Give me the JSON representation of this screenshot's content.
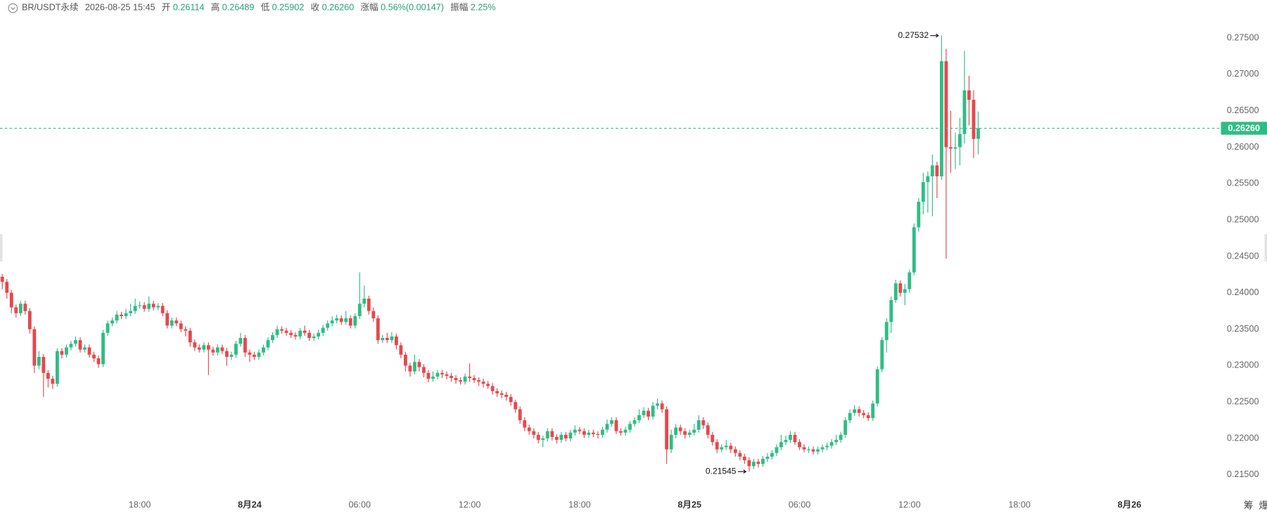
{
  "header": {
    "symbol": "BR/USDT永续",
    "time": "2026-08-25 15:45",
    "fields": [
      {
        "label": "开",
        "value": "0.26114"
      },
      {
        "label": "高",
        "value": "0.26489"
      },
      {
        "label": "低",
        "value": "0.25902"
      },
      {
        "label": "收",
        "value": "0.26260"
      },
      {
        "label": "涨幅",
        "value": "0.56%(0.00147)"
      },
      {
        "label": "振幅",
        "value": "2.25%"
      }
    ]
  },
  "toolbar": [
    "筹",
    "爆"
  ],
  "chart_data": {
    "type": "candlestick",
    "up_color": "#2ebd85",
    "down_color": "#e5484d",
    "xlim": [
      -0.5,
      265.8
    ],
    "xticks": [
      {
        "value": 30,
        "label": "18:00"
      },
      {
        "value": 54,
        "label": "8月24"
      },
      {
        "value": 78,
        "label": "06:00"
      },
      {
        "value": 102,
        "label": "12:00"
      },
      {
        "value": 126,
        "label": "18:00"
      },
      {
        "value": 150,
        "label": "8月25"
      },
      {
        "value": 174,
        "label": "06:00"
      },
      {
        "value": 198,
        "label": "12:00"
      },
      {
        "value": 222,
        "label": "18:00"
      },
      {
        "value": 246,
        "label": "8月26"
      }
    ],
    "ylim": [
      0.2126,
      0.2802
    ],
    "yticks": [
      {
        "value": 0.215,
        "label": "0.21500"
      },
      {
        "value": 0.22,
        "label": "0.22000"
      },
      {
        "value": 0.225,
        "label": "0.22500"
      },
      {
        "value": 0.23,
        "label": "0.23000"
      },
      {
        "value": 0.235,
        "label": "0.23500"
      },
      {
        "value": 0.24,
        "label": "0.24000"
      },
      {
        "value": 0.245,
        "label": "0.24500"
      },
      {
        "value": 0.25,
        "label": "0.25000"
      },
      {
        "value": 0.255,
        "label": "0.25500"
      },
      {
        "value": 0.26,
        "label": "0.26000"
      },
      {
        "value": 0.265,
        "label": "0.26500"
      },
      {
        "value": 0.27,
        "label": "0.27000"
      },
      {
        "value": 0.275,
        "label": "0.27500"
      }
    ],
    "last_price": {
      "value": 0.2626,
      "label": "0.26260"
    },
    "annotations": {
      "high": 0.27532,
      "low": 0.21545
    },
    "open": [
      0.2422,
      0.2415,
      0.24,
      0.238,
      0.2372,
      0.2385,
      0.2375,
      0.235,
      0.23,
      0.2312,
      0.229,
      0.2282,
      0.2275,
      0.232,
      0.2315,
      0.2325,
      0.233,
      0.2335,
      0.2322,
      0.2325,
      0.2315,
      0.231,
      0.2302,
      0.2345,
      0.2358,
      0.2362,
      0.237,
      0.2368,
      0.2372,
      0.2375,
      0.2382,
      0.2383,
      0.2378,
      0.2385,
      0.238,
      0.2382,
      0.2372,
      0.2355,
      0.2362,
      0.2358,
      0.235,
      0.2348,
      0.2332,
      0.2325,
      0.2322,
      0.2328,
      0.2322,
      0.2318,
      0.2325,
      0.232,
      0.2312,
      0.2315,
      0.233,
      0.2338,
      0.2318,
      0.2315,
      0.2312,
      0.2318,
      0.2325,
      0.2335,
      0.2342,
      0.235,
      0.2348,
      0.2345,
      0.2342,
      0.234,
      0.2348,
      0.2345,
      0.2338,
      0.234,
      0.2345,
      0.2352,
      0.2358,
      0.2362,
      0.2365,
      0.236,
      0.2365,
      0.2355,
      0.2368,
      0.2385,
      0.2392,
      0.2375,
      0.2365,
      0.2335,
      0.2338,
      0.2335,
      0.234,
      0.2328,
      0.2315,
      0.23,
      0.2292,
      0.2305,
      0.2298,
      0.229,
      0.2282,
      0.2285,
      0.229,
      0.2288,
      0.2286,
      0.2283,
      0.228,
      0.2278,
      0.2285,
      0.2283,
      0.228,
      0.2278,
      0.2275,
      0.2272,
      0.2265,
      0.2262,
      0.226,
      0.2257,
      0.225,
      0.224,
      0.2225,
      0.2215,
      0.221,
      0.2205,
      0.2198,
      0.22,
      0.221,
      0.2202,
      0.2198,
      0.2205,
      0.22,
      0.2208,
      0.2212,
      0.221,
      0.2205,
      0.2208,
      0.2206,
      0.2205,
      0.2212,
      0.222,
      0.2225,
      0.221,
      0.2208,
      0.2212,
      0.222,
      0.2225,
      0.2232,
      0.2238,
      0.223,
      0.2245,
      0.2248,
      0.224,
      0.2185,
      0.2205,
      0.2215,
      0.221,
      0.2205,
      0.2208,
      0.2212,
      0.2225,
      0.2218,
      0.2205,
      0.2195,
      0.2185,
      0.2188,
      0.219,
      0.2185,
      0.218,
      0.2175,
      0.217,
      0.2162,
      0.2168,
      0.2165,
      0.2172,
      0.2175,
      0.218,
      0.2188,
      0.2195,
      0.2198,
      0.2205,
      0.2195,
      0.2188,
      0.2185,
      0.2185,
      0.2182,
      0.2185,
      0.2188,
      0.219,
      0.2195,
      0.2198,
      0.2205,
      0.2225,
      0.2235,
      0.224,
      0.2235,
      0.2232,
      0.2228,
      0.2248,
      0.2295,
      0.2335,
      0.236,
      0.239,
      0.2413,
      0.24,
      0.2405,
      0.2428,
      0.249,
      0.2525,
      0.2552,
      0.256,
      0.2575,
      0.256,
      0.2718,
      0.26,
      0.2598,
      0.26,
      0.2618,
      0.2678,
      0.2665,
      0.26114
    ],
    "high": [
      0.2426,
      0.2419,
      0.2404,
      0.2384,
      0.2389,
      0.2389,
      0.2379,
      0.2354,
      0.232,
      0.2316,
      0.2294,
      0.2286,
      0.2324,
      0.2324,
      0.2329,
      0.2334,
      0.234,
      0.2339,
      0.2329,
      0.2329,
      0.2319,
      0.2314,
      0.2349,
      0.2362,
      0.2366,
      0.2375,
      0.2374,
      0.2378,
      0.2385,
      0.2392,
      0.2388,
      0.2387,
      0.2395,
      0.2389,
      0.2386,
      0.2386,
      0.2376,
      0.2366,
      0.2366,
      0.2362,
      0.2354,
      0.2352,
      0.2336,
      0.2329,
      0.2332,
      0.2332,
      0.2326,
      0.2329,
      0.2329,
      0.2324,
      0.2319,
      0.2334,
      0.2345,
      0.2342,
      0.2322,
      0.2319,
      0.2322,
      0.2329,
      0.2339,
      0.2346,
      0.2355,
      0.2354,
      0.2352,
      0.2349,
      0.2346,
      0.2352,
      0.2355,
      0.2349,
      0.2344,
      0.2349,
      0.2356,
      0.2362,
      0.2368,
      0.237,
      0.2369,
      0.2375,
      0.2369,
      0.2372,
      0.2428,
      0.241,
      0.2396,
      0.238,
      0.2369,
      0.2342,
      0.2345,
      0.2346,
      0.2344,
      0.2332,
      0.2319,
      0.2304,
      0.2315,
      0.2309,
      0.2302,
      0.2294,
      0.2292,
      0.2294,
      0.2294,
      0.2292,
      0.229,
      0.2287,
      0.2284,
      0.2289,
      0.2303,
      0.2287,
      0.2284,
      0.2282,
      0.2279,
      0.2276,
      0.2269,
      0.2266,
      0.2264,
      0.2261,
      0.2253,
      0.2244,
      0.2229,
      0.2219,
      0.2214,
      0.2209,
      0.2204,
      0.2214,
      0.2214,
      0.2206,
      0.2209,
      0.2209,
      0.2212,
      0.2218,
      0.2216,
      0.2214,
      0.2212,
      0.2212,
      0.221,
      0.2216,
      0.2226,
      0.2229,
      0.2229,
      0.2214,
      0.2216,
      0.2224,
      0.2229,
      0.224,
      0.2243,
      0.2242,
      0.225,
      0.2255,
      0.2252,
      0.2244,
      0.2212,
      0.222,
      0.2219,
      0.2214,
      0.2212,
      0.222,
      0.2232,
      0.2229,
      0.2222,
      0.2209,
      0.2199,
      0.2192,
      0.2198,
      0.2194,
      0.2189,
      0.2184,
      0.2179,
      0.2174,
      0.2172,
      0.2172,
      0.2176,
      0.218,
      0.2184,
      0.2192,
      0.2205,
      0.2204,
      0.221,
      0.2209,
      0.2199,
      0.2192,
      0.2189,
      0.2189,
      0.2189,
      0.2192,
      0.2194,
      0.2199,
      0.2205,
      0.2209,
      0.2229,
      0.224,
      0.2246,
      0.2244,
      0.2239,
      0.2236,
      0.2252,
      0.2299,
      0.2339,
      0.2365,
      0.2395,
      0.2418,
      0.2417,
      0.2412,
      0.2432,
      0.2495,
      0.253,
      0.2565,
      0.2567,
      0.259,
      0.258,
      0.27532,
      0.2735,
      0.265,
      0.262,
      0.264,
      0.2732,
      0.2698,
      0.2678,
      0.26489
    ],
    "low": [
      0.2405,
      0.2392,
      0.2372,
      0.2366,
      0.2368,
      0.237,
      0.2344,
      0.229,
      0.2295,
      0.2257,
      0.227,
      0.2268,
      0.2271,
      0.231,
      0.2311,
      0.2321,
      0.2326,
      0.2318,
      0.2318,
      0.2311,
      0.2305,
      0.2297,
      0.2298,
      0.2341,
      0.2354,
      0.2358,
      0.2364,
      0.2364,
      0.2368,
      0.2371,
      0.2378,
      0.2374,
      0.2374,
      0.2376,
      0.2376,
      0.2368,
      0.2351,
      0.2351,
      0.2354,
      0.2346,
      0.234,
      0.2326,
      0.232,
      0.2318,
      0.2318,
      0.2287,
      0.2314,
      0.2314,
      0.2316,
      0.23,
      0.2308,
      0.2311,
      0.2326,
      0.2312,
      0.2305,
      0.2308,
      0.2308,
      0.2314,
      0.2321,
      0.2331,
      0.2338,
      0.2344,
      0.2341,
      0.2338,
      0.2336,
      0.2336,
      0.2341,
      0.2334,
      0.2334,
      0.2336,
      0.2341,
      0.2348,
      0.2354,
      0.2358,
      0.2356,
      0.2356,
      0.2351,
      0.2351,
      0.2364,
      0.238,
      0.237,
      0.236,
      0.233,
      0.2331,
      0.2331,
      0.2331,
      0.2322,
      0.231,
      0.2292,
      0.2285,
      0.2288,
      0.2292,
      0.2284,
      0.2277,
      0.2278,
      0.2281,
      0.2283,
      0.2281,
      0.2278,
      0.2275,
      0.2274,
      0.2274,
      0.2278,
      0.2276,
      0.2272,
      0.227,
      0.2268,
      0.226,
      0.2257,
      0.2255,
      0.2252,
      0.2245,
      0.2235,
      0.222,
      0.221,
      0.2205,
      0.22,
      0.2193,
      0.2188,
      0.2196,
      0.2197,
      0.2193,
      0.2194,
      0.2196,
      0.2196,
      0.2204,
      0.2206,
      0.2201,
      0.2201,
      0.2202,
      0.22,
      0.2201,
      0.2208,
      0.2216,
      0.2206,
      0.2204,
      0.2204,
      0.2208,
      0.2216,
      0.2221,
      0.2228,
      0.2225,
      0.2226,
      0.224,
      0.2235,
      0.2165,
      0.218,
      0.22,
      0.2205,
      0.22,
      0.2201,
      0.2204,
      0.2208,
      0.2213,
      0.22,
      0.219,
      0.218,
      0.2181,
      0.2184,
      0.218,
      0.2175,
      0.217,
      0.2165,
      0.21545,
      0.2158,
      0.216,
      0.2161,
      0.2168,
      0.2171,
      0.2176,
      0.2184,
      0.2191,
      0.2194,
      0.2191,
      0.2184,
      0.2181,
      0.218,
      0.2178,
      0.2178,
      0.2181,
      0.2184,
      0.2186,
      0.2191,
      0.2194,
      0.2201,
      0.2221,
      0.2231,
      0.223,
      0.2228,
      0.2224,
      0.2224,
      0.2244,
      0.2291,
      0.2318,
      0.2345,
      0.2386,
      0.2395,
      0.2383,
      0.24,
      0.2424,
      0.2484,
      0.2508,
      0.251,
      0.2505,
      0.253,
      0.2555,
      0.2447,
      0.2565,
      0.257,
      0.2575,
      0.2605,
      0.263,
      0.2585,
      0.25902
    ],
    "close": [
      0.2415,
      0.24,
      0.238,
      0.2372,
      0.2385,
      0.2375,
      0.235,
      0.23,
      0.2312,
      0.229,
      0.2282,
      0.2275,
      0.232,
      0.2315,
      0.2325,
      0.233,
      0.2335,
      0.2322,
      0.2325,
      0.2315,
      0.231,
      0.2302,
      0.2345,
      0.2358,
      0.2362,
      0.237,
      0.2368,
      0.2372,
      0.2375,
      0.2382,
      0.2383,
      0.2378,
      0.2385,
      0.238,
      0.2382,
      0.2372,
      0.2355,
      0.2362,
      0.2358,
      0.235,
      0.2348,
      0.2332,
      0.2325,
      0.2322,
      0.2328,
      0.2322,
      0.2318,
      0.2325,
      0.232,
      0.2312,
      0.2315,
      0.233,
      0.2338,
      0.2318,
      0.2315,
      0.2312,
      0.2318,
      0.2325,
      0.2335,
      0.2342,
      0.235,
      0.2348,
      0.2345,
      0.2342,
      0.234,
      0.2348,
      0.2345,
      0.2338,
      0.234,
      0.2345,
      0.2352,
      0.2358,
      0.2362,
      0.2365,
      0.236,
      0.2365,
      0.2355,
      0.2368,
      0.2385,
      0.2392,
      0.2375,
      0.2365,
      0.2335,
      0.2338,
      0.2335,
      0.234,
      0.2328,
      0.2315,
      0.23,
      0.2292,
      0.2305,
      0.2298,
      0.229,
      0.2282,
      0.2285,
      0.229,
      0.2288,
      0.2286,
      0.2283,
      0.228,
      0.2278,
      0.2285,
      0.2283,
      0.228,
      0.2278,
      0.2275,
      0.2272,
      0.2265,
      0.2262,
      0.226,
      0.2257,
      0.225,
      0.224,
      0.2225,
      0.2215,
      0.221,
      0.2205,
      0.2198,
      0.22,
      0.221,
      0.2202,
      0.2198,
      0.2205,
      0.22,
      0.2208,
      0.2212,
      0.221,
      0.2205,
      0.2208,
      0.2206,
      0.2205,
      0.2212,
      0.222,
      0.2225,
      0.221,
      0.2208,
      0.2212,
      0.222,
      0.2225,
      0.2232,
      0.2238,
      0.223,
      0.2245,
      0.2248,
      0.224,
      0.2185,
      0.2205,
      0.2215,
      0.221,
      0.2205,
      0.2208,
      0.2212,
      0.2225,
      0.2218,
      0.2205,
      0.2195,
      0.2185,
      0.2188,
      0.219,
      0.2185,
      0.218,
      0.2175,
      0.217,
      0.2162,
      0.2168,
      0.2165,
      0.2172,
      0.2175,
      0.218,
      0.2188,
      0.2195,
      0.2198,
      0.2205,
      0.2195,
      0.2188,
      0.2185,
      0.2185,
      0.2182,
      0.2185,
      0.2188,
      0.219,
      0.2195,
      0.2198,
      0.2205,
      0.2225,
      0.2235,
      0.224,
      0.2235,
      0.2232,
      0.2228,
      0.2248,
      0.2295,
      0.2335,
      0.236,
      0.239,
      0.2413,
      0.24,
      0.2405,
      0.2428,
      0.249,
      0.2525,
      0.2552,
      0.256,
      0.2575,
      0.256,
      0.2718,
      0.26,
      0.2598,
      0.26,
      0.2618,
      0.2678,
      0.2665,
      0.26114,
      0.2626
    ]
  }
}
